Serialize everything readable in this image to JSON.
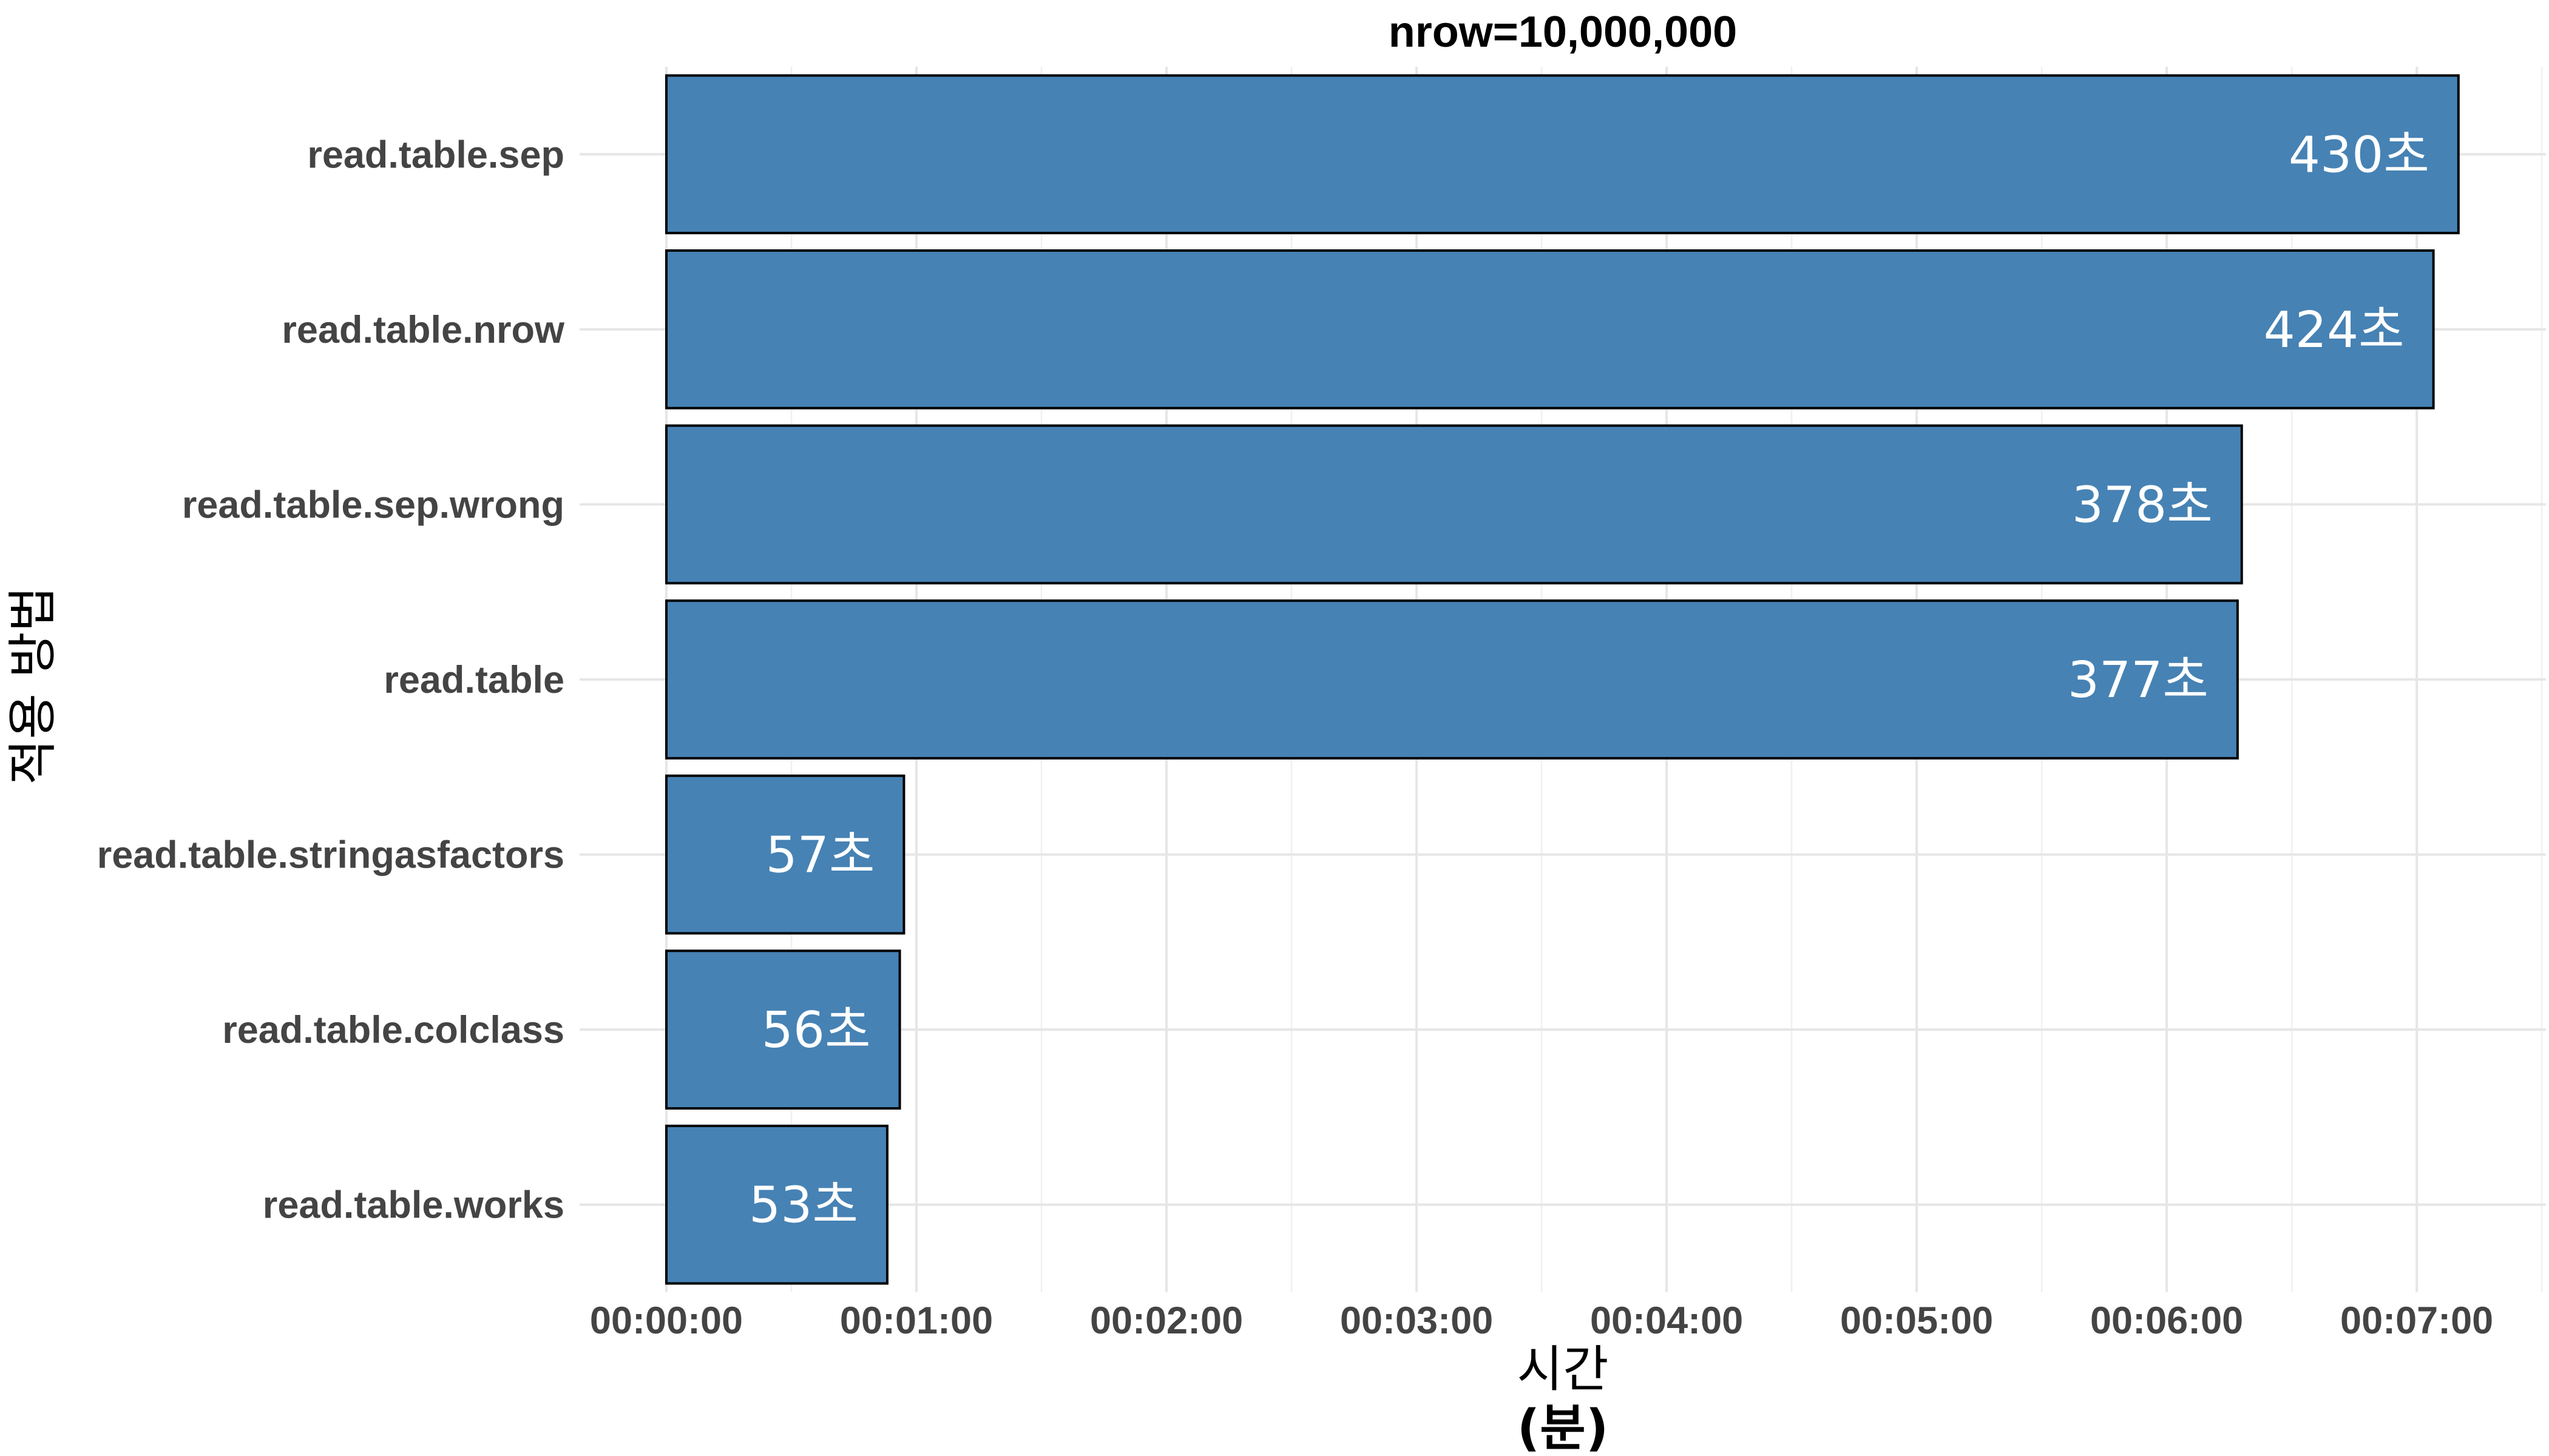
{
  "chart_data": {
    "type": "bar",
    "orientation": "horizontal",
    "title": "nrow=10,000,000",
    "xlabel_line1": "시간",
    "xlabel_line2": "(분)",
    "ylabel": "적용 방법",
    "categories": [
      "read.table.sep",
      "read.table.nrow",
      "read.table.sep.wrong",
      "read.table",
      "read.table.stringasfactors",
      "read.table.colclass",
      "read.table.works"
    ],
    "values": [
      430,
      424,
      378,
      377,
      57,
      56,
      53
    ],
    "value_labels": [
      "430초",
      "424초",
      "378초",
      "377초",
      "57초",
      "56초",
      "53초"
    ],
    "value_unit": "seconds",
    "xlim": [
      0,
      450
    ],
    "x_ticks": [
      0,
      60,
      120,
      180,
      240,
      300,
      360,
      420
    ],
    "x_tick_labels": [
      "00:00:00",
      "00:01:00",
      "00:02:00",
      "00:03:00",
      "00:04:00",
      "00:05:00",
      "00:06:00",
      "00:07:00"
    ],
    "grid": true,
    "legend": "none",
    "colors": {
      "bar_fill": "#4682b4",
      "bar_outline": "#000000",
      "value_label": "#ffffff"
    }
  }
}
